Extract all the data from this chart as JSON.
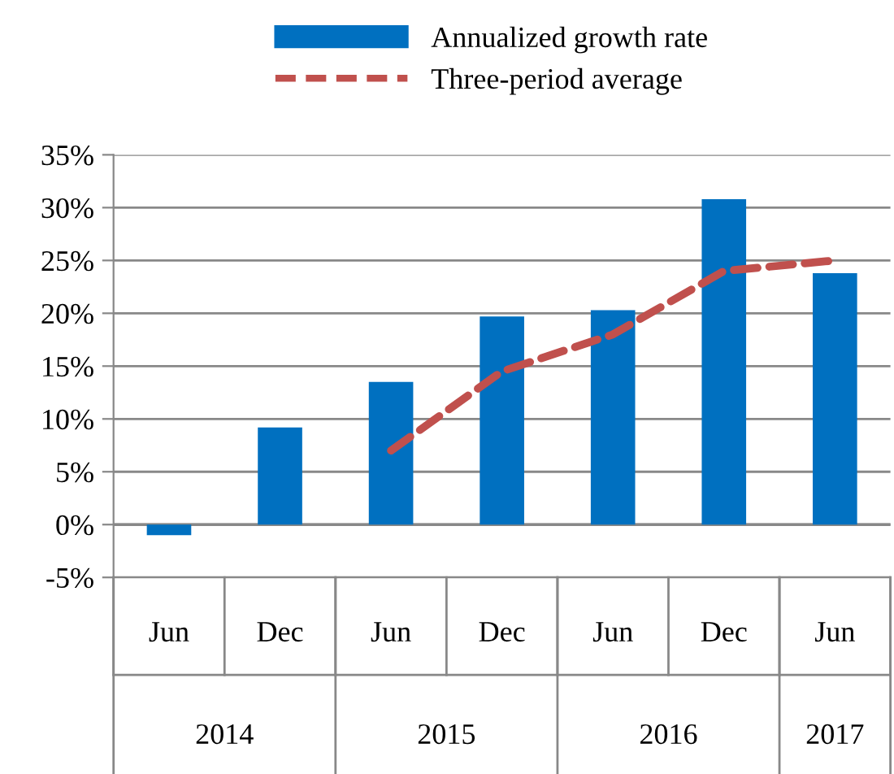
{
  "chart_data": {
    "type": "bar",
    "categories": [
      "Jun",
      "Dec",
      "Jun",
      "Dec",
      "Jun",
      "Dec",
      "Jun"
    ],
    "series": [
      {
        "name": "Annualized growth rate",
        "color": "#0070c0",
        "values": [
          -1.0,
          9.2,
          13.5,
          19.7,
          20.3,
          30.8,
          23.8
        ]
      },
      {
        "name": "Three-period average",
        "type": "line",
        "color": "#c0504d",
        "line_style": "dashed",
        "values": [
          null,
          null,
          7.0,
          14.5,
          18.0,
          24.0,
          25.0
        ]
      }
    ],
    "annotations": [
      "2014",
      "2015",
      "2016",
      "2017"
    ],
    "ylim": [
      -5,
      35
    ],
    "yticks": [
      {
        "value": -5,
        "label": "-5%"
      },
      {
        "value": 0,
        "label": "0%"
      },
      {
        "value": 5,
        "label": "5%"
      },
      {
        "value": 10,
        "label": "10%"
      },
      {
        "value": 15,
        "label": "15%"
      },
      {
        "value": 20,
        "label": "20%"
      },
      {
        "value": 25,
        "label": "25%"
      },
      {
        "value": 30,
        "label": "30%"
      },
      {
        "value": 35,
        "label": "35%"
      }
    ],
    "grid": "y",
    "legend": "top"
  }
}
